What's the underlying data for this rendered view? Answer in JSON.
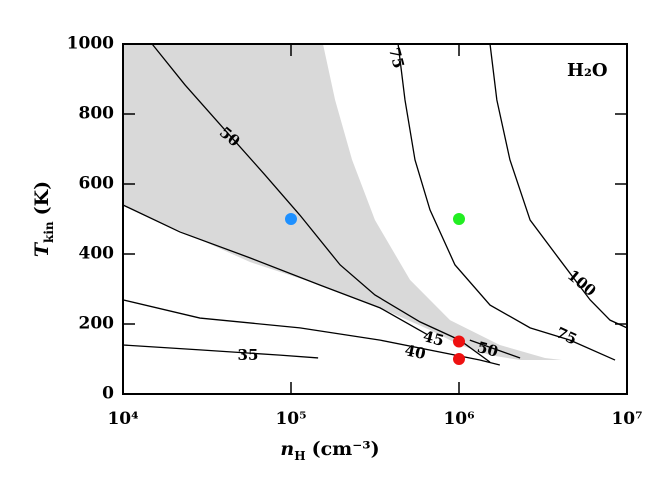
{
  "chart_data": {
    "type": "contour",
    "annotation": "H₂O",
    "xlabel": {
      "symbol": "n",
      "subscript": "H",
      "unit": "(cm⁻³)"
    },
    "ylabel": {
      "symbol": "T",
      "subscript": "kin",
      "unit": "(K)"
    },
    "xscale": "log",
    "xlim": [
      10000,
      10000000
    ],
    "ylim": [
      0,
      1000
    ],
    "xticks": [
      {
        "value": 10000,
        "label": "10⁴"
      },
      {
        "value": 100000,
        "label": "10⁵"
      },
      {
        "value": 1000000,
        "label": "10⁶"
      },
      {
        "value": 10000000,
        "label": "10⁷"
      }
    ],
    "yticks": [
      0,
      200,
      400,
      600,
      800,
      1000
    ],
    "region": {
      "color": "#d9d9d9",
      "x": [
        10000,
        155000,
        183000,
        231000,
        316000,
        511000,
        884000,
        1750000,
        3250000,
        4100000,
        2310000,
        1530000,
        1010000,
        672000,
        339000,
        149000,
        57000,
        25000,
        14500,
        10000
      ],
      "values": [
        1000,
        1000,
        840,
        669,
        497,
        326,
        211,
        140,
        103,
        97,
        97,
        111,
        140,
        183,
        246,
        311,
        377,
        454,
        503,
        540
      ]
    },
    "series": [
      {
        "name": "50",
        "color": "#000000",
        "x": [
          14900,
          23400,
          40500,
          70000,
          113000,
          196000,
          316000,
          586000,
          1010000,
          1530000
        ],
        "values": [
          1000,
          883,
          754,
          626,
          511,
          369,
          283,
          206,
          154,
          91
        ]
      },
      {
        "name": "45",
        "color": "#000000",
        "x": [
          10000,
          21800,
          57000,
          149000,
          339000,
          651000
        ],
        "values": [
          540,
          463,
          389,
          311,
          246,
          169
        ]
      },
      {
        "name": "50",
        "color": "#000000",
        "x": [
          1160000,
          2310000
        ],
        "values": [
          154,
          103
        ]
      },
      {
        "name": "40",
        "color": "#000000",
        "x": [
          10000,
          28700,
          113000,
          339000,
          1330000,
          1750000
        ],
        "values": [
          269,
          217,
          189,
          154,
          97,
          83
        ]
      },
      {
        "name": "35",
        "color": "#000000",
        "x": [
          10000,
          28700,
          86000,
          145000
        ],
        "values": [
          140,
          126,
          111,
          103
        ]
      },
      {
        "name": "75",
        "color": "#000000",
        "x": [
          434000,
          477000,
          547000,
          672000,
          946000,
          1530000,
          2650000,
          4580000,
          8490000
        ],
        "values": [
          1000,
          840,
          669,
          526,
          369,
          254,
          189,
          154,
          97
        ]
      },
      {
        "name": "100",
        "color": "#000000",
        "x": [
          1530000,
          1680000,
          2010000,
          2650000,
          3990000,
          6030000,
          7930000,
          10000000
        ],
        "values": [
          1000,
          840,
          669,
          497,
          383,
          269,
          211,
          189
        ]
      }
    ],
    "points": {
      "x": [
        100000,
        1000000,
        1000000,
        1000000
      ],
      "values": [
        500,
        500,
        150,
        100
      ],
      "colors": [
        "#1e90ff",
        "#22ee22",
        "#ee1111",
        "#ee1111"
      ]
    }
  }
}
